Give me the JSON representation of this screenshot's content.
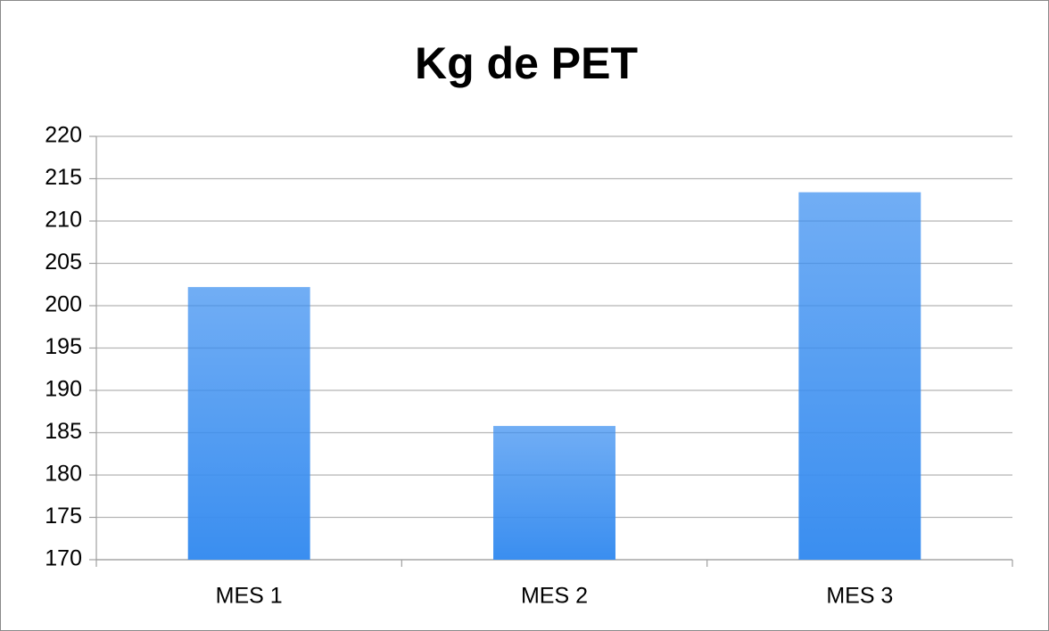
{
  "chart_data": {
    "type": "bar",
    "title": "Kg de PET",
    "categories": [
      "MES 1",
      "MES 2",
      "MES 3"
    ],
    "values": [
      202.2,
      185.8,
      213.4
    ],
    "color": "#3a8ef0",
    "ylim": [
      170,
      220
    ],
    "yticks": [
      170,
      175,
      180,
      185,
      190,
      195,
      200,
      205,
      210,
      215,
      220
    ],
    "grid": true
  }
}
